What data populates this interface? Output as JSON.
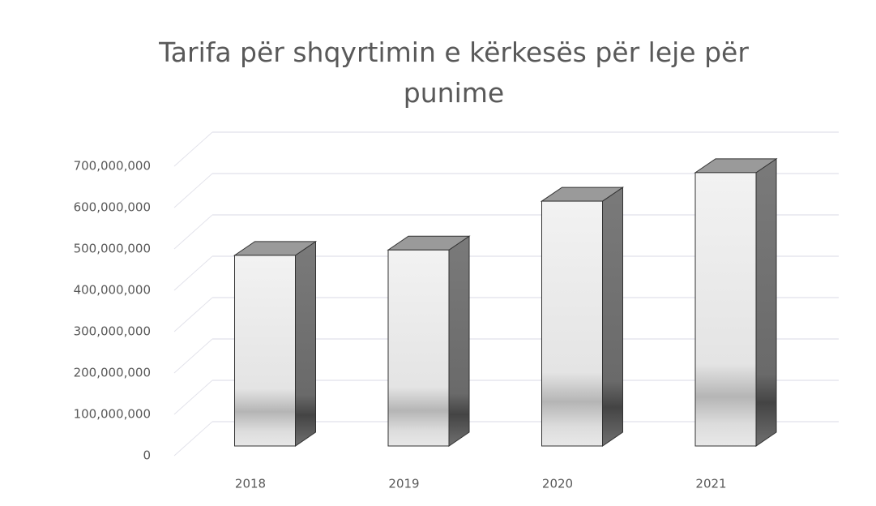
{
  "chart_data": {
    "type": "bar3d",
    "title": "Tarifa për shqyrtimin  e kërkesës për leje për punime",
    "categories": [
      "2018",
      "2019",
      "2020",
      "2021"
    ],
    "values": [
      461000000,
      474000000,
      592000000,
      661000000
    ],
    "color": "#e6e6e6",
    "ylim": [
      0,
      700000000
    ],
    "yticks": [
      0,
      {
        "value": 100000000,
        "label": "100,000,000"
      },
      {
        "value": 200000000,
        "label": "200,000,000"
      },
      {
        "value": 300000000,
        "label": "300,000,000"
      },
      {
        "value": 400000000,
        "label": "400,000,000"
      },
      {
        "value": 500000000,
        "label": "500,000,000"
      },
      {
        "value": 600000000,
        "label": "600,000,000"
      },
      {
        "value": 700000000,
        "label": "700,000,000"
      }
    ],
    "grid": true
  }
}
